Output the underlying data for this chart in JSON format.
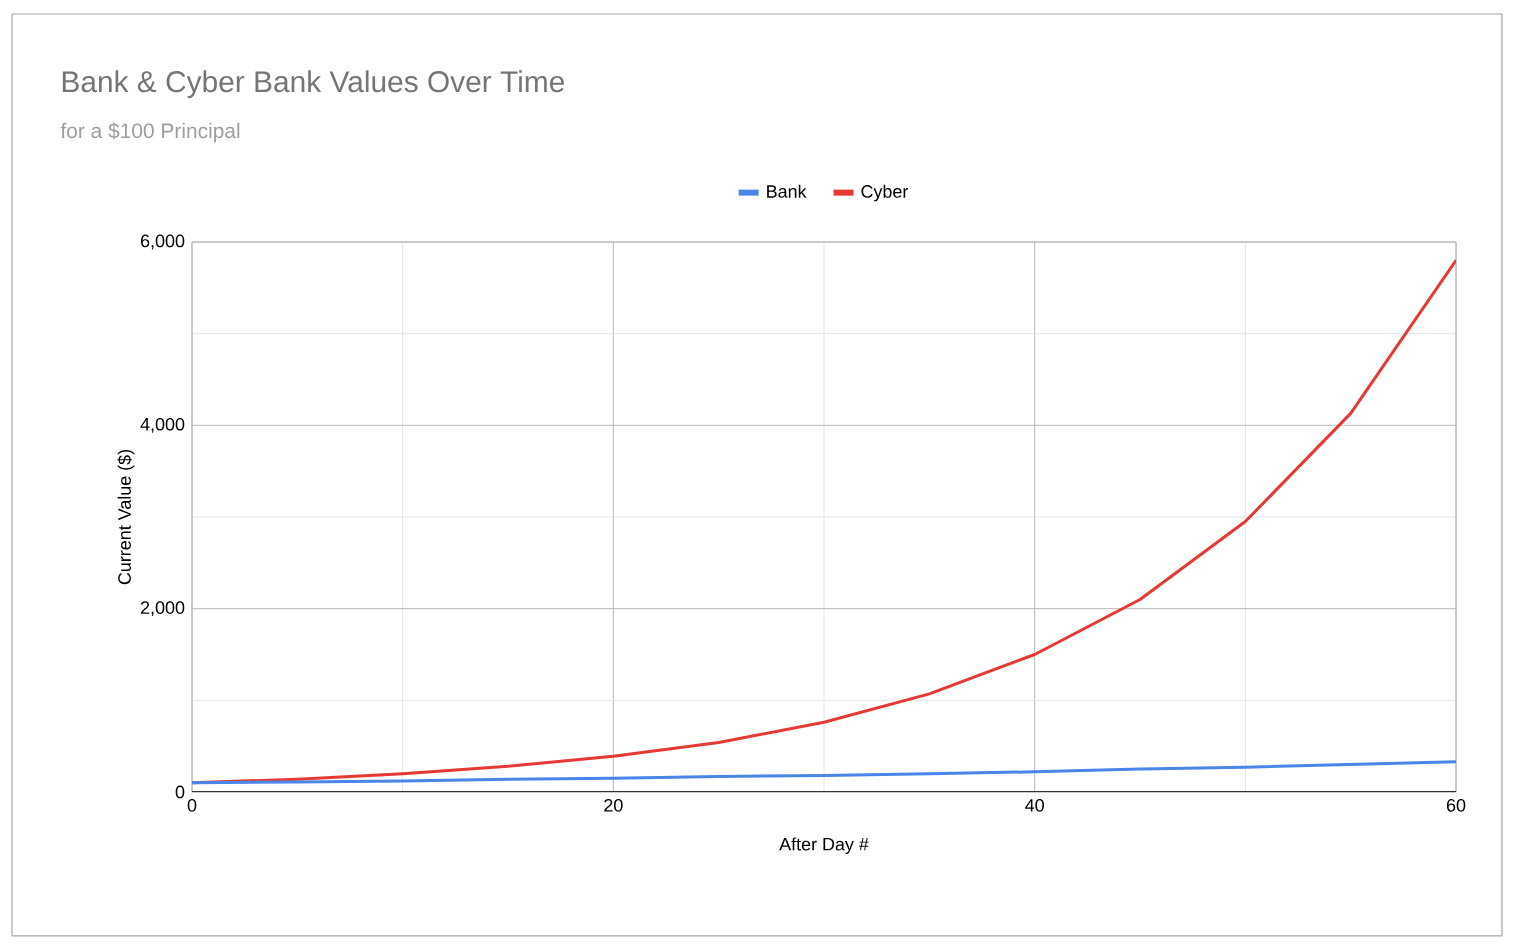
{
  "chart_data": {
    "type": "line",
    "title": "Bank & Cyber Bank Values Over Time",
    "subtitle": "for a $100 Principal",
    "xlabel": "After Day #",
    "ylabel": "Current Value ($)",
    "x": [
      0,
      5,
      10,
      15,
      20,
      25,
      30,
      35,
      40,
      45,
      50,
      55,
      60
    ],
    "series": [
      {
        "name": "Bank",
        "color": "#4a86e8",
        "values": [
          100,
          110,
          120,
          140,
          150,
          170,
          180,
          200,
          220,
          250,
          270,
          300,
          330
        ]
      },
      {
        "name": "Cyber",
        "color": "#e53935",
        "values": [
          100,
          140,
          200,
          280,
          390,
          540,
          760,
          1070,
          1500,
          2100,
          2950,
          4130,
          5800
        ]
      }
    ],
    "xlim": [
      0,
      60
    ],
    "xticks": [
      0,
      20,
      40,
      60
    ],
    "ylim": [
      0,
      6000
    ],
    "yticks": [
      {
        "value": 0,
        "label": "0"
      },
      {
        "value": 2000,
        "label": "2,000"
      },
      {
        "value": 4000,
        "label": "4,000"
      },
      {
        "value": 6000,
        "label": "6,000"
      }
    ],
    "grid": true,
    "legend": "top",
    "marker": "none",
    "line_style": "solid"
  }
}
